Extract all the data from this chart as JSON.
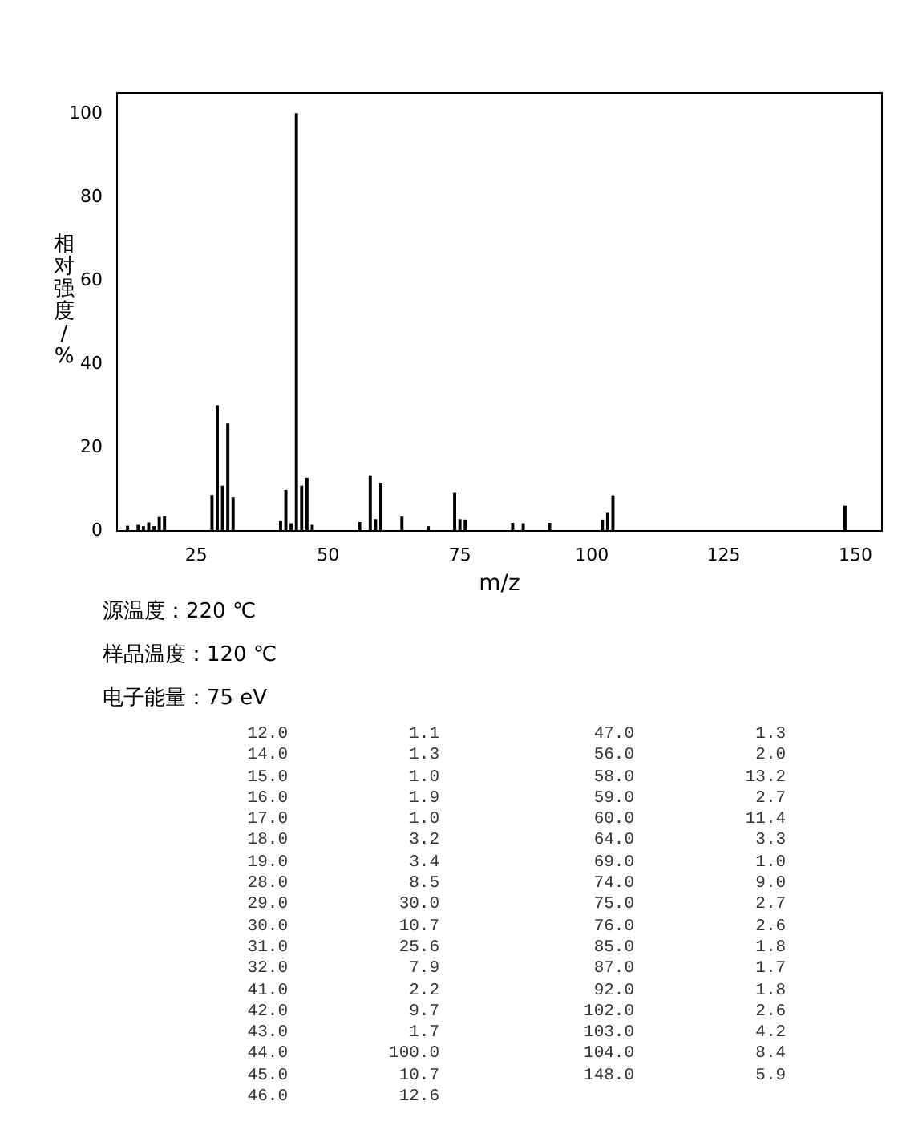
{
  "chart_data": [
    {
      "type": "bar",
      "xlabel": "m/z",
      "ylabel": "相对强度/%",
      "x": [
        12,
        14,
        15,
        16,
        17,
        18,
        19,
        28,
        29,
        30,
        31,
        32,
        41,
        42,
        43,
        44,
        45,
        46,
        47,
        56,
        58,
        59,
        60,
        64,
        69,
        74,
        75,
        76,
        85,
        87,
        92,
        102,
        103,
        104,
        148
      ],
      "values": [
        1.1,
        1.3,
        1.0,
        1.9,
        1.0,
        3.2,
        3.4,
        8.5,
        30.0,
        10.7,
        25.6,
        7.9,
        2.2,
        9.7,
        1.7,
        100.0,
        10.7,
        12.6,
        1.3,
        2.0,
        13.2,
        2.7,
        11.4,
        3.3,
        1.0,
        9.0,
        2.7,
        2.6,
        1.8,
        1.7,
        1.8,
        2.6,
        4.2,
        8.4,
        5.9
      ],
      "color": "#000000",
      "xlim": [
        10,
        155
      ],
      "xticks": [
        25,
        50,
        75,
        100,
        125,
        150
      ],
      "ylim": [
        0,
        105
      ],
      "yticks": [
        0,
        20,
        40,
        60,
        80,
        100
      ],
      "grid": false,
      "annotations": [
        "源温度：220 ℃",
        "样品温度：120 ℃",
        "电子能量：75 eV"
      ]
    },
    {
      "type": "other",
      "annotations": [
        "12.0 1.1",
        "14.0 1.3",
        "15.0 1.0",
        "16.0 1.9",
        "17.0 1.0",
        "18.0 3.2",
        "19.0 3.4",
        "28.0 8.5",
        "29.0 30.0",
        "30.0 10.7",
        "31.0 25.6",
        "32.0 7.9",
        "41.0 2.2",
        "42.0 9.7",
        "43.0 1.7",
        "44.0 100.0",
        "45.0 10.7",
        "46.0 12.6",
        "47.0 1.3",
        "56.0 2.0",
        "58.0 13.2",
        "59.0 2.7",
        "60.0 11.4",
        "64.0 3.3",
        "69.0 1.0",
        "74.0 9.0",
        "75.0 2.7",
        "76.0 2.6",
        "85.0 1.8",
        "87.0 1.7",
        "92.0 1.8",
        "102.0 2.6",
        "103.0 4.2",
        "104.0 8.4",
        "148.0 5.9"
      ]
    }
  ]
}
